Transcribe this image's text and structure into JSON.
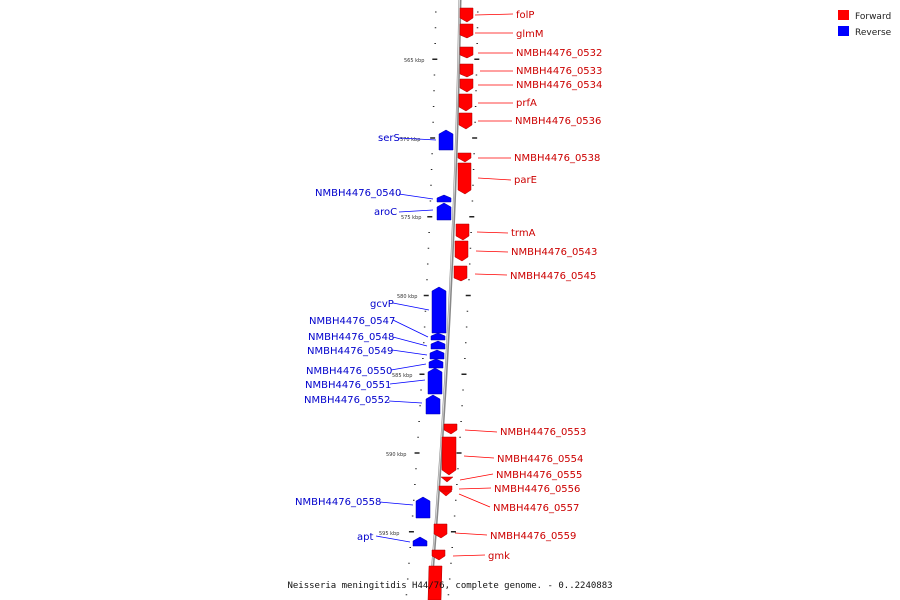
{
  "caption": "Neisseria meningitidis H44/76, complete genome. - 0..2240883",
  "legend": {
    "forward": {
      "label": "Forward",
      "color": "#ff0000"
    },
    "reverse": {
      "label": "Reverse",
      "color": "#0000ff"
    }
  },
  "scale_ticks": [
    "565 kbp",
    "570 kbp",
    "575 kbp",
    "580 kbp",
    "585 kbp",
    "590 kbp",
    "595 kbp"
  ],
  "forward_genes": [
    "folP",
    "glmM",
    "NMBH4476_0532",
    "NMBH4476_0533",
    "NMBH4476_0534",
    "prfA",
    "NMBH4476_0536",
    "NMBH4476_0538",
    "parE",
    "trmA",
    "NMBH4476_0543",
    "NMBH4476_0545",
    "NMBH4476_0553",
    "NMBH4476_0554",
    "NMBH4476_0555",
    "NMBH4476_0556",
    "NMBH4476_0557",
    "NMBH4476_0559",
    "gmk"
  ],
  "reverse_genes": [
    "serS",
    "NMBH4476_0540",
    "aroC",
    "gcvP",
    "NMBH4476_0547",
    "NMBH4476_0548",
    "NMBH4476_0549",
    "NMBH4476_0550",
    "NMBH4476_0551",
    "NMBH4476_0552",
    "NMBH4476_0558",
    "apt"
  ]
}
